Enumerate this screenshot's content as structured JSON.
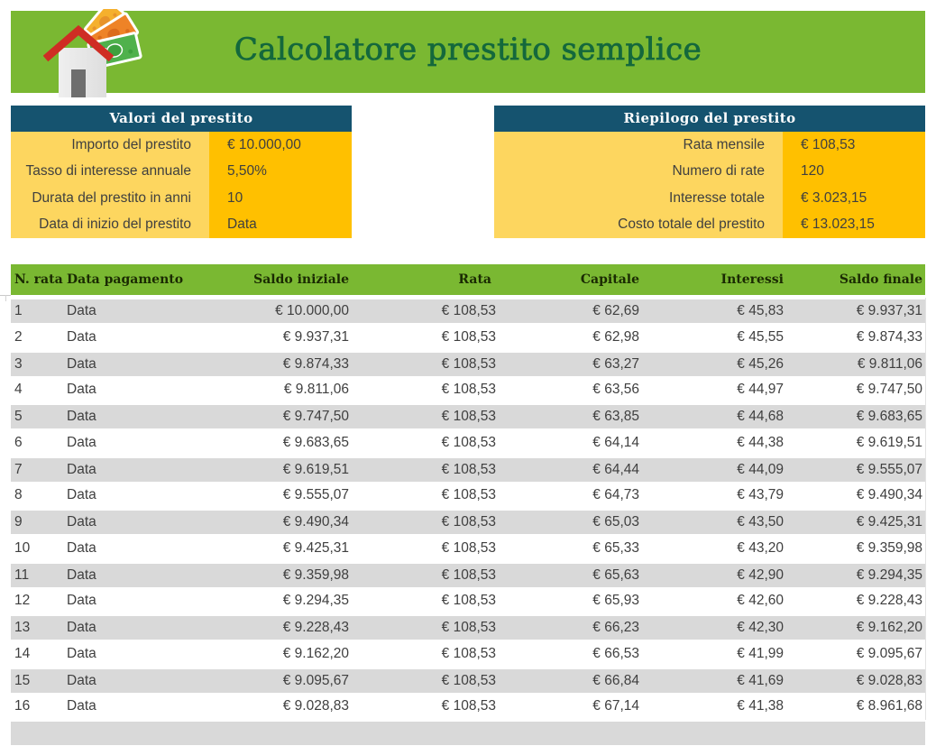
{
  "title": "Calcolatore prestito semplice",
  "icon": "house-with-money-icon",
  "loan_values": {
    "header": "Valori del prestito",
    "rows": [
      {
        "label": "Importo del prestito",
        "value": "€ 10.000,00"
      },
      {
        "label": "Tasso di interesse annuale",
        "value": "5,50%"
      },
      {
        "label": "Durata del prestito in anni",
        "value": "10"
      },
      {
        "label": "Data di inizio del prestito",
        "value": "Data"
      }
    ]
  },
  "loan_summary": {
    "header": "Riepilogo del prestito",
    "rows": [
      {
        "label": "Rata mensile",
        "value": "€ 108,53"
      },
      {
        "label": "Numero di rate",
        "value": "120"
      },
      {
        "label": "Interesse totale",
        "value": "€ 3.023,15"
      },
      {
        "label": "Costo totale del prestito",
        "value": "€ 13.023,15"
      }
    ]
  },
  "schedule": {
    "headers": [
      "N. rata",
      "Data pagamento",
      "Saldo iniziale",
      "Rata",
      "Capitale",
      "Interessi",
      "Saldo finale"
    ],
    "rows": [
      [
        "1",
        "Data",
        "€ 10.000,00",
        "€ 108,53",
        "€ 62,69",
        "€ 45,83",
        "€ 9.937,31"
      ],
      [
        "2",
        "Data",
        "€ 9.937,31",
        "€ 108,53",
        "€ 62,98",
        "€ 45,55",
        "€ 9.874,33"
      ],
      [
        "3",
        "Data",
        "€ 9.874,33",
        "€ 108,53",
        "€ 63,27",
        "€ 45,26",
        "€ 9.811,06"
      ],
      [
        "4",
        "Data",
        "€ 9.811,06",
        "€ 108,53",
        "€ 63,56",
        "€ 44,97",
        "€ 9.747,50"
      ],
      [
        "5",
        "Data",
        "€ 9.747,50",
        "€ 108,53",
        "€ 63,85",
        "€ 44,68",
        "€ 9.683,65"
      ],
      [
        "6",
        "Data",
        "€ 9.683,65",
        "€ 108,53",
        "€ 64,14",
        "€ 44,38",
        "€ 9.619,51"
      ],
      [
        "7",
        "Data",
        "€ 9.619,51",
        "€ 108,53",
        "€ 64,44",
        "€ 44,09",
        "€ 9.555,07"
      ],
      [
        "8",
        "Data",
        "€ 9.555,07",
        "€ 108,53",
        "€ 64,73",
        "€ 43,79",
        "€ 9.490,34"
      ],
      [
        "9",
        "Data",
        "€ 9.490,34",
        "€ 108,53",
        "€ 65,03",
        "€ 43,50",
        "€ 9.425,31"
      ],
      [
        "10",
        "Data",
        "€ 9.425,31",
        "€ 108,53",
        "€ 65,33",
        "€ 43,20",
        "€ 9.359,98"
      ],
      [
        "11",
        "Data",
        "€ 9.359,98",
        "€ 108,53",
        "€ 65,63",
        "€ 42,90",
        "€ 9.294,35"
      ],
      [
        "12",
        "Data",
        "€ 9.294,35",
        "€ 108,53",
        "€ 65,93",
        "€ 42,60",
        "€ 9.228,43"
      ],
      [
        "13",
        "Data",
        "€ 9.228,43",
        "€ 108,53",
        "€ 66,23",
        "€ 42,30",
        "€ 9.162,20"
      ],
      [
        "14",
        "Data",
        "€ 9.162,20",
        "€ 108,53",
        "€ 66,53",
        "€ 41,99",
        "€ 9.095,67"
      ],
      [
        "15",
        "Data",
        "€ 9.095,67",
        "€ 108,53",
        "€ 66,84",
        "€ 41,69",
        "€ 9.028,83"
      ],
      [
        "16",
        "Data",
        "€ 9.028,83",
        "€ 108,53",
        "€ 67,14",
        "€ 41,38",
        "€ 8.961,68"
      ]
    ]
  },
  "colors": {
    "banner_green": "#7ab832",
    "title_green": "#14683c",
    "teal": "#15536f",
    "light_yellow": "#fdd65f",
    "amber": "#ffc000",
    "row_gray": "#d9d9d9",
    "text_dark": "#3f3f3f",
    "header_text": "#1a2a02"
  }
}
